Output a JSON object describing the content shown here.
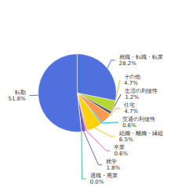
{
  "chart_data": {
    "type": "pie",
    "categories": [
      "就職・転職・転業",
      "その他",
      "生活の利便性",
      "住宅",
      "交通の利便性",
      "結婚・離婚・縁組",
      "卒業",
      "就学",
      "退職・廃業",
      "転勤"
    ],
    "values": [
      28.2,
      4.7,
      1.2,
      4.7,
      0.6,
      6.5,
      0.6,
      1.8,
      0.0,
      51.8
    ],
    "value_labels": [
      "28.2%",
      "4.7%",
      "1.2%",
      "4.7%",
      "0.6%",
      "6.5%",
      "0.6%",
      "1.8%",
      "0.0%",
      "51.8%"
    ],
    "data_labels": true
  }
}
